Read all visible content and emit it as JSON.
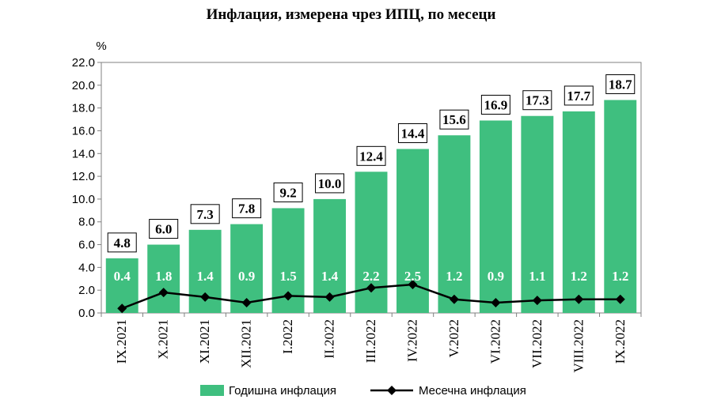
{
  "chart_data": {
    "type": "bar",
    "title": "Инфлация, измерена чрез ИПЦ, по месеци",
    "ylabel": "%",
    "ylim": [
      0,
      22
    ],
    "yticks": [
      "0.0",
      "2.0",
      "4.0",
      "6.0",
      "8.0",
      "10.0",
      "12.0",
      "14.0",
      "16.0",
      "18.0",
      "20.0",
      "22.0"
    ],
    "categories": [
      "IX.2021",
      "X.2021",
      "XI.2021",
      "XII.2021",
      "I.2022",
      "II.2022",
      "III.2022",
      "IV.2022",
      "V.2022",
      "VI.2022",
      "VII.2022",
      "VIII.2022",
      "IX.2022"
    ],
    "series": [
      {
        "name": "Годишна инфлация",
        "type": "bar",
        "color": "#3fbf7f",
        "values": [
          4.8,
          6.0,
          7.3,
          7.8,
          9.2,
          10.0,
          12.4,
          14.4,
          15.6,
          16.9,
          17.3,
          17.7,
          18.7
        ],
        "labels": [
          "4.8",
          "6.0",
          "7.3",
          "7.8",
          "9.2",
          "10.0",
          "12.4",
          "14.4",
          "15.6",
          "16.9",
          "17.3",
          "17.7",
          "18.7"
        ]
      },
      {
        "name": "Месечна инфлация",
        "type": "line",
        "color": "#000000",
        "values": [
          0.4,
          1.8,
          1.4,
          0.9,
          1.5,
          1.4,
          2.2,
          2.5,
          1.2,
          0.9,
          1.1,
          1.2,
          1.2
        ],
        "labels": [
          "0.4",
          "1.8",
          "1.4",
          "0.9",
          "1.5",
          "1.4",
          "2.2",
          "2.5",
          "1.2",
          "0.9",
          "1.1",
          "1.2",
          "1.2"
        ]
      }
    ],
    "grid": false,
    "legend": "bottom"
  }
}
